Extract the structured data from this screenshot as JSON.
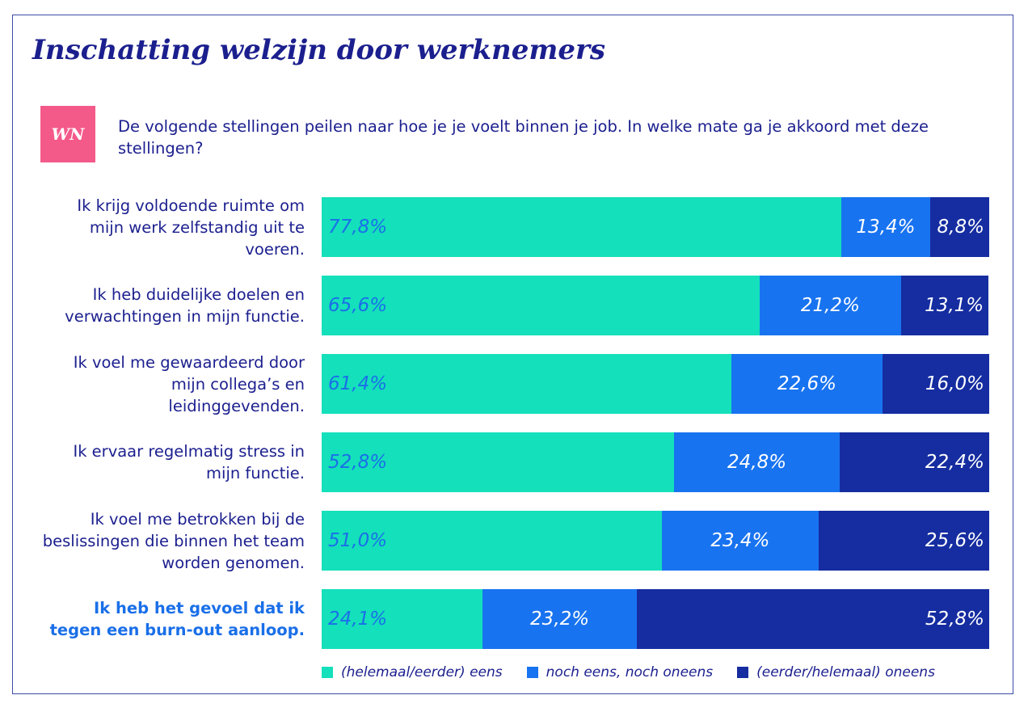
{
  "title": "Inschatting welzijn door werknemers",
  "badge": "WN",
  "question": "De volgende stellingen peilen naar hoe je je voelt binnen je job. In welke mate ga je akkoord met deze stellingen?",
  "colors": {
    "agree": "#14e0bb",
    "neutral": "#1873f0",
    "disagree": "#152da0",
    "highlight": "#1a6fe8",
    "badge": "#f35a8a"
  },
  "chart_data": {
    "type": "bar",
    "orientation": "horizontal",
    "stacked": true,
    "title": "Inschatting welzijn door werknemers",
    "categories": [
      "Ik krijg voldoende ruimte om mijn werk zelfstandig uit te voeren.",
      "Ik heb duidelijke doelen en verwachtingen in mijn functie.",
      "Ik voel me gewaardeerd door mijn collega’s en leidinggevenden.",
      "Ik ervaar regelmatig stress in mijn functie.",
      "Ik voel me betrokken bij de beslissingen die binnen het team worden genomen.",
      "Ik heb het gevoel dat ik tegen een burn-out aanloop."
    ],
    "highlight_index": 5,
    "series": [
      {
        "name": "(helemaal/eerder) eens",
        "values": [
          77.8,
          65.6,
          61.4,
          52.8,
          51.0,
          24.1
        ],
        "labels": [
          "77,8%",
          "65,6%",
          "61,4%",
          "52,8%",
          "51,0%",
          "24,1%"
        ]
      },
      {
        "name": "noch eens, noch oneens",
        "values": [
          13.4,
          21.2,
          22.6,
          24.8,
          23.4,
          23.2
        ],
        "labels": [
          "13,4%",
          "21,2%",
          "22,6%",
          "24,8%",
          "23,4%",
          "23,2%"
        ]
      },
      {
        "name": "(eerder/helemaal) oneens",
        "values": [
          8.8,
          13.1,
          16.0,
          22.4,
          25.6,
          52.8
        ],
        "labels": [
          "8,8%",
          "13,1%",
          "16,0%",
          "22,4%",
          "25,6%",
          "52,8%"
        ]
      }
    ],
    "xlim": [
      0,
      100
    ],
    "legend_position": "bottom"
  }
}
